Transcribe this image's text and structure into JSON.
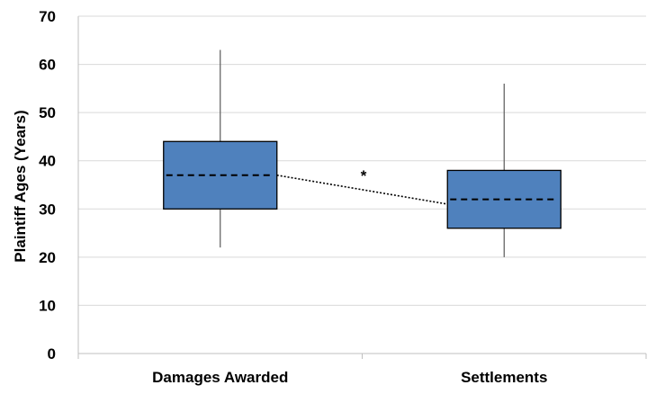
{
  "chart_data": {
    "type": "box",
    "ylabel": "Plaintiff Ages (Years)",
    "ylim": [
      0,
      70
    ],
    "yticks": [
      "0",
      "10",
      "20",
      "30",
      "40",
      "50",
      "60",
      "70"
    ],
    "grid": true,
    "categories": [
      "Damages Awarded",
      "Settlements"
    ],
    "boxes": [
      {
        "category": "Damages Awarded",
        "min": 22,
        "q1": 30,
        "median": 37,
        "q3": 44,
        "max": 63
      },
      {
        "category": "Settlements",
        "min": 20,
        "q1": 26,
        "median": 32,
        "q3": 38,
        "max": 56
      }
    ],
    "annotation": "*",
    "colors": {
      "box_fill": "#4f81bd",
      "box_stroke": "#000000",
      "grid": "#d9d9d9",
      "whisker": "#595959"
    }
  }
}
